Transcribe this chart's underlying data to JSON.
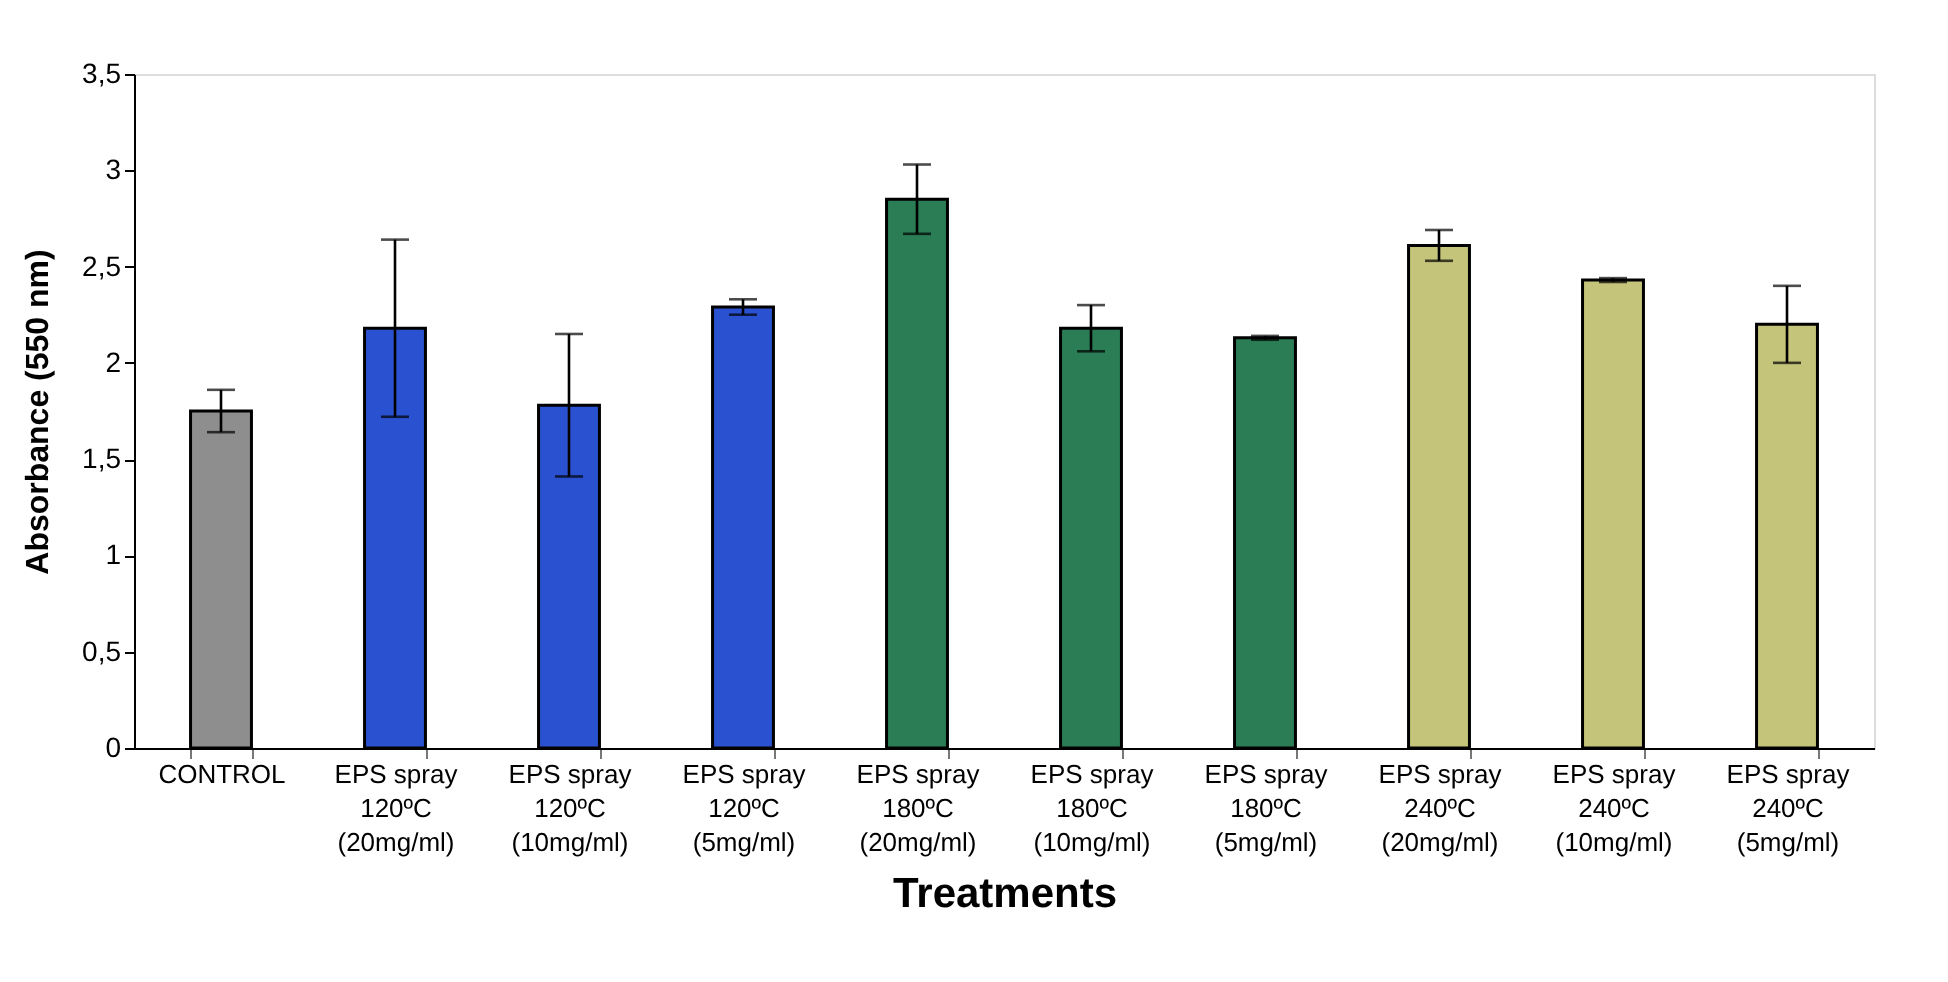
{
  "chart_data": {
    "type": "bar",
    "xlabel": "Treatments",
    "ylabel": "Absorbance (550 nm)",
    "categories": [
      "CONTROL",
      "EPS spray\n120ºC\n(20mg/ml)",
      "EPS spray\n120ºC\n(10mg/ml)",
      "EPS spray\n120ºC\n(5mg/ml)",
      "EPS spray\n180ºC\n(20mg/ml)",
      "EPS spray\n180ºC\n(10mg/ml)",
      "EPS spray\n180ºC\n(5mg/ml)",
      "EPS spray\n240ºC\n(20mg/ml)",
      "EPS spray\n240ºC\n(10mg/ml)",
      "EPS spray\n240ºC\n(5mg/ml)"
    ],
    "values": [
      1.75,
      2.18,
      1.78,
      2.29,
      2.85,
      2.18,
      2.13,
      2.61,
      2.43,
      2.2
    ],
    "errors": [
      0.11,
      0.46,
      0.37,
      0.04,
      0.18,
      0.12,
      0.01,
      0.08,
      0.01,
      0.2
    ],
    "colors": [
      "#8e8e8e",
      "#2a52d0",
      "#2a52d0",
      "#2a52d0",
      "#2a7d55",
      "#2a7d55",
      "#2a7d55",
      "#c4c47a",
      "#c4c47a",
      "#c4c47a"
    ],
    "ylim": [
      0,
      3.5
    ],
    "yticks": [
      0,
      {
        "value": 0.5,
        "label": "0,5"
      },
      1,
      {
        "value": 1.5,
        "label": "1,5"
      },
      2,
      {
        "value": 2.5,
        "label": "2,5"
      },
      3,
      {
        "value": 3.5,
        "label": "3,5"
      }
    ],
    "grid": false
  }
}
